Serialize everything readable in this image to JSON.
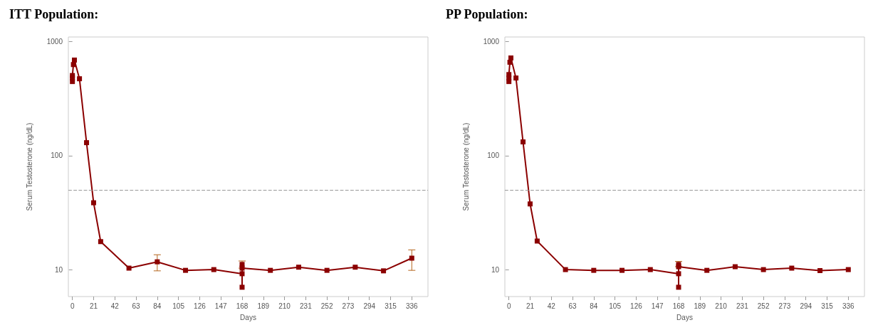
{
  "chart_data": [
    {
      "type": "line",
      "title": "ITT Population:",
      "xlabel": "Days",
      "ylabel": "Serum Testosterone (ng/dL)",
      "marker": "square",
      "line_style": "solid",
      "log": "y",
      "grid": false,
      "xlim": [
        -4,
        352
      ],
      "xticks": [
        0,
        21,
        42,
        63,
        84,
        105,
        126,
        147,
        168,
        189,
        210,
        231,
        252,
        273,
        294,
        315,
        336
      ],
      "ylim": [
        5.8,
        1100
      ],
      "yticks": [
        10,
        100,
        1000
      ],
      "ref_lines": [
        {
          "axis": "y",
          "value": 50,
          "label": null,
          "color": "#999999",
          "line_style": "dashed"
        }
      ],
      "series": [
        {
          "color": "#8b0000",
          "x": [
            0,
            0,
            0,
            1,
            2,
            7,
            14,
            21,
            28,
            56,
            84,
            112,
            140,
            168,
            168,
            168,
            168,
            196,
            224,
            252,
            280,
            308,
            336
          ],
          "values": [
            447,
            480,
            505,
            630,
            690,
            473,
            130,
            38.6,
            17.6,
            10.3,
            11.7,
            9.85,
            10,
            9.2,
            7.0,
            11.1,
            10.3,
            9.85,
            10.5,
            9.85,
            10.5,
            9.75,
            12.6
          ],
          "errors": [
            null,
            null,
            null,
            null,
            null,
            null,
            null,
            null,
            null,
            null,
            [
              9.75,
              13.5
            ],
            null,
            null,
            null,
            null,
            [
              10.3,
              11.9
            ],
            null,
            null,
            null,
            null,
            null,
            null,
            [
              9.85,
              14.9
            ]
          ]
        }
      ]
    },
    {
      "type": "line",
      "title": "PP Population:",
      "xlabel": "Days",
      "ylabel": "Serum Testosterone (ng/dL)",
      "marker": "square",
      "line_style": "solid",
      "log": "y",
      "grid": false,
      "xlim": [
        -4,
        352
      ],
      "xticks": [
        0,
        21,
        42,
        63,
        84,
        105,
        126,
        147,
        168,
        189,
        210,
        231,
        252,
        273,
        294,
        315,
        336
      ],
      "ylim": [
        5.8,
        1100
      ],
      "yticks": [
        10,
        100,
        1000
      ],
      "ref_lines": [
        {
          "axis": "y",
          "value": 50,
          "label": null,
          "color": "#999999",
          "line_style": "dashed"
        }
      ],
      "series": [
        {
          "color": "#8b0000",
          "x": [
            0,
            0,
            0,
            1,
            2,
            7,
            14,
            21,
            28,
            56,
            84,
            112,
            140,
            168,
            168,
            168,
            168,
            196,
            224,
            252,
            280,
            308,
            336
          ],
          "values": [
            447,
            480,
            515,
            660,
            720,
            480,
            132,
            37.7,
            17.8,
            10,
            9.85,
            9.85,
            10,
            9.2,
            7.0,
            11.1,
            10.6,
            9.85,
            10.6,
            10,
            10.3,
            9.8,
            10
          ],
          "errors": [
            null,
            null,
            null,
            null,
            null,
            null,
            null,
            null,
            null,
            null,
            null,
            null,
            null,
            null,
            null,
            [
              10.6,
              11.8
            ],
            null,
            null,
            null,
            null,
            null,
            null,
            null
          ]
        }
      ]
    }
  ]
}
